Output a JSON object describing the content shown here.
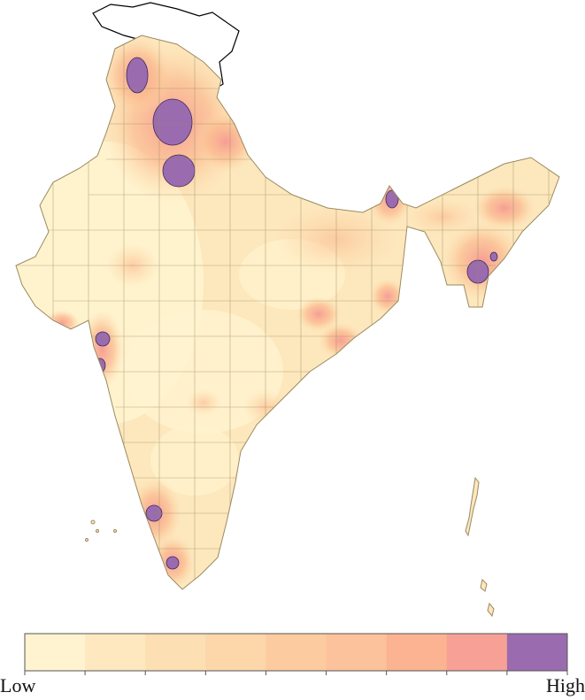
{
  "legend": {
    "low_label": "Low",
    "high_label": "High",
    "colors": [
      "#fff4cf",
      "#fee8c0",
      "#fddfb4",
      "#fdd6aa",
      "#fdcba0",
      "#fcc29b",
      "#fbb391",
      "#f7a096",
      "#9b6bb0"
    ]
  }
}
